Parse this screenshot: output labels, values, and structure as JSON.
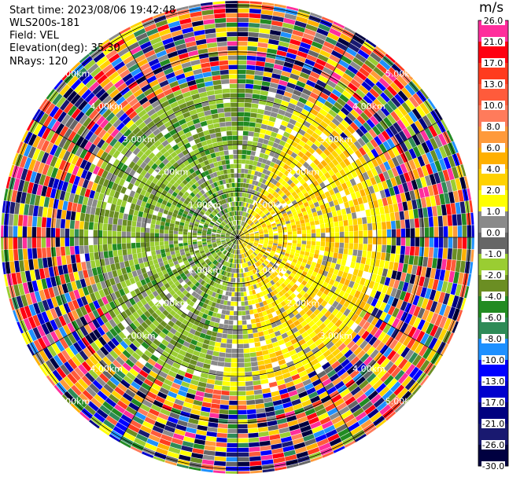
{
  "info": {
    "start_time": "Start time: 2023/08/06 19:42:48",
    "instrument": "WLS200s-181",
    "field": "Field: VEL",
    "elevation": "Elevation(deg): 35.30",
    "nrays": "NRays: 120"
  },
  "chart_data": {
    "type": "heatmap",
    "projection": "polar-ppi",
    "field": "VEL",
    "unit": "m/s",
    "rings_km": [
      1,
      2,
      3,
      4,
      5
    ],
    "ring_labels": [
      "1.00km",
      "2.00km",
      "3.00km",
      "4.00km",
      "5.00km"
    ],
    "max_range_km": 5.1,
    "n_rays": 120,
    "spokes_deg": [
      0,
      30,
      60,
      90,
      120,
      150,
      180,
      210,
      240,
      270,
      300,
      330
    ],
    "colorbar": {
      "ticks": [
        "26.0",
        "21.0",
        "17.0",
        "13.0",
        "10.0",
        "8.0",
        "6.0",
        "4.0",
        "2.0",
        "1.0",
        "0.0",
        "-1.0",
        "-2.0",
        "-4.0",
        "-6.0",
        "-8.0",
        "-10.0",
        "-13.0",
        "-17.0",
        "-21.0",
        "-26.0",
        "-30.0"
      ],
      "colors": [
        "#ff2e9c",
        "#ff0011",
        "#ff3b1e",
        "#ff5b3b",
        "#ff7b5b",
        "#ff9a3a",
        "#ffb000",
        "#ffd200",
        "#ffff00",
        "#8a8a8a",
        "#666666",
        "#9acd32",
        "#6b8e23",
        "#228b22",
        "#2e8b57",
        "#1e90ff",
        "#0000ff",
        "#0000cd",
        "#000080",
        "#191970",
        "#000040"
      ]
    },
    "field_description": {
      "inner_range_km": [
        0,
        3.3
      ],
      "positive_sector_deg": [
        25,
        170
      ],
      "negative_sector_deg": [
        190,
        360
      ],
      "noise_range_km": [
        3.3,
        5.1
      ]
    }
  }
}
